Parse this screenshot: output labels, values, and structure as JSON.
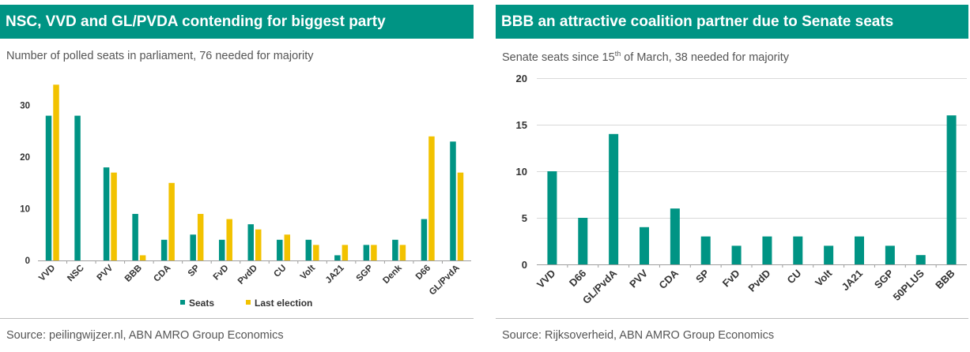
{
  "left_panel": {
    "title": "NSC, VVD and GL/PVDA contending for biggest party",
    "subtitle": "Number of polled seats in parliament, 76 needed for majority",
    "source": "Source: peilingwijzer.nl, ABN AMRO Group Economics"
  },
  "right_panel": {
    "title": "BBB an attractive coalition partner due to Senate seats",
    "subtitle_pre": "Senate seats since 15",
    "subtitle_sup": "th",
    "subtitle_post": " of March, 38 needed for majority",
    "source": "Source: Rijksoverheid, ABN AMRO Group Economics"
  },
  "colors": {
    "teal": "#009484",
    "gold": "#f2c200",
    "header": "#009484"
  },
  "chart_data": [
    {
      "type": "bar",
      "categories": [
        "VVD",
        "NSC",
        "PVV",
        "BBB",
        "CDA",
        "SP",
        "FvD",
        "PvdD",
        "CU",
        "Volt",
        "JA21",
        "SGP",
        "Denk",
        "D66",
        "GL/PvdA"
      ],
      "series": [
        {
          "name": "Seats",
          "color": "#009484",
          "values": [
            28,
            28,
            18,
            9,
            4,
            5,
            4,
            7,
            4,
            4,
            1,
            3,
            4,
            8,
            23
          ]
        },
        {
          "name": "Last election",
          "color": "#f2c200",
          "values": [
            34,
            0,
            17,
            1,
            15,
            9,
            8,
            6,
            5,
            3,
            3,
            3,
            3,
            24,
            17
          ]
        }
      ],
      "ylim": [
        0,
        35
      ],
      "yticks": [
        0,
        10,
        20,
        30
      ],
      "grid": false,
      "legend": "bottom"
    },
    {
      "type": "bar",
      "categories": [
        "VVD",
        "D66",
        "GL/PvdA",
        "PVV",
        "CDA",
        "SP",
        "FvD",
        "PvdD",
        "CU",
        "Volt",
        "JA21",
        "SGP",
        "50PLUS",
        "BBB"
      ],
      "series": [
        {
          "name": "",
          "color": "#009484",
          "values": [
            10,
            5,
            14,
            4,
            6,
            3,
            2,
            3,
            3,
            2,
            3,
            2,
            1,
            16
          ]
        }
      ],
      "ylim": [
        0,
        20
      ],
      "yticks": [
        0,
        5,
        10,
        15,
        20
      ],
      "grid": true
    }
  ]
}
